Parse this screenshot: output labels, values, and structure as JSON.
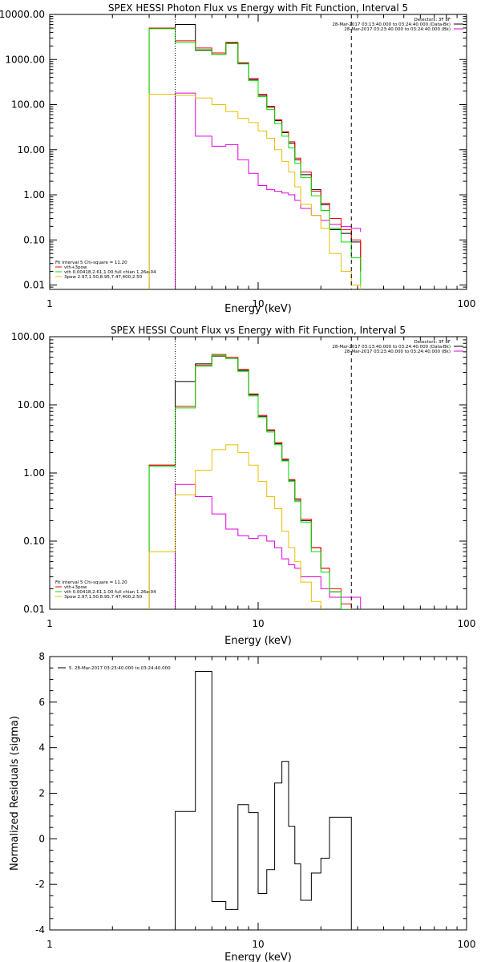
{
  "chart_data": [
    {
      "type": "line",
      "step": true,
      "title": "SPEX HESSI Photon Flux vs Energy with Fit Function, Interval 5",
      "xlabel": "Energy (keV)",
      "ylabel": "",
      "xscale": "log",
      "yscale": "log",
      "xlim": [
        1,
        100
      ],
      "ylim": [
        0.008,
        10000
      ],
      "xticks": [
        {
          "v": 1,
          "label": "1"
        },
        {
          "v": 10,
          "label": "10"
        },
        {
          "v": 100,
          "label": "100"
        }
      ],
      "yticks": [
        {
          "v": 10000,
          "label": "10000.00"
        },
        {
          "v": 1000,
          "label": "1000.00"
        },
        {
          "v": 100,
          "label": "100.00"
        },
        {
          "v": 10,
          "label": "10.00"
        },
        {
          "v": 1,
          "label": "1.00"
        },
        {
          "v": 0.1,
          "label": "0.10"
        },
        {
          "v": 0.01,
          "label": "0.01"
        }
      ],
      "vlines": [
        {
          "x": 4.0,
          "style": "dotted"
        },
        {
          "x": 28.0,
          "style": "dashed"
        }
      ],
      "header": [
        "Detectors: 3F 8F",
        "28-Mar-2017 03:13:40.000 to 03:24:40.000 (Data-Bk)",
        "28-Mar-2017 03:23:40.000 to 03:24:40.000 (Bk)"
      ],
      "header_colors": [
        "",
        "#000000",
        "#e000e0"
      ],
      "legend_title": "Fit Interval 5   Chi-square = 11.20",
      "legend": [
        {
          "label": "vth+3pow",
          "color": "#ff0000"
        },
        {
          "label": "vth 0.00418,2.61,1.00  full chian 1.26e-04",
          "color": "#00e000"
        },
        {
          "label": "3pow 2.97,1.50,8.95,7.47,400,2.50",
          "color": "#e8c000"
        }
      ],
      "edges": [
        3.0,
        4.0,
        5.0,
        6.0,
        7.0,
        8.0,
        9.0,
        10.0,
        11.0,
        12.0,
        13.0,
        14.0,
        15.0,
        16.0,
        18.0,
        20.0,
        22.0,
        25.0,
        28.0,
        31.0
      ],
      "series": [
        {
          "name": "Data-Bk",
          "color": "#000000",
          "values": [
            5000,
            6000,
            1600,
            1300,
            2300,
            820,
            360,
            160,
            88,
            44,
            24,
            14,
            6,
            2.8,
            1.3,
            0.6,
            0.17,
            0.14,
            0.09,
            0.02
          ]
        },
        {
          "name": "Bk",
          "color": "#e000e0",
          "values": [
            null,
            180,
            20,
            12,
            13,
            6,
            3,
            1.6,
            1.3,
            1.2,
            1.1,
            1.0,
            0.75,
            0.5,
            0.35,
            0.27,
            0.22,
            0.2,
            0.18,
            0.15
          ]
        },
        {
          "name": "vth+3pow",
          "color": "#ff0000",
          "values": [
            5000,
            2600,
            1800,
            1400,
            2400,
            850,
            380,
            170,
            92,
            46,
            25,
            15,
            6.5,
            3.2,
            1.2,
            0.65,
            0.3,
            0.17,
            0.1,
            0.02
          ]
        },
        {
          "name": "vth",
          "color": "#00e000",
          "values": [
            4800,
            2400,
            1650,
            1300,
            2250,
            800,
            340,
            150,
            78,
            38,
            20,
            11,
            5.0,
            2.4,
            0.95,
            0.45,
            0.18,
            0.09,
            0.04,
            0.01
          ]
        },
        {
          "name": "3pow",
          "color": "#e8c000",
          "values": [
            170,
            160,
            140,
            100,
            70,
            50,
            40,
            26,
            18,
            10,
            5.5,
            3.2,
            1.5,
            0.62,
            0.35,
            0.18,
            0.05,
            0.02,
            0.01,
            null
          ]
        }
      ]
    },
    {
      "type": "line",
      "step": true,
      "title": "SPEX HESSI Count Flux vs Energy with Fit Function, Interval 5",
      "xlabel": "Energy (keV)",
      "ylabel": "",
      "xscale": "log",
      "yscale": "log",
      "xlim": [
        1,
        100
      ],
      "ylim": [
        0.01,
        100
      ],
      "xticks": [
        {
          "v": 1,
          "label": "1"
        },
        {
          "v": 10,
          "label": "10"
        },
        {
          "v": 100,
          "label": "100"
        }
      ],
      "yticks": [
        {
          "v": 100,
          "label": "100.00"
        },
        {
          "v": 10,
          "label": "10.00"
        },
        {
          "v": 1,
          "label": "1.00"
        },
        {
          "v": 0.1,
          "label": "0.10"
        },
        {
          "v": 0.01,
          "label": "0.01"
        }
      ],
      "vlines": [
        {
          "x": 4.0,
          "style": "dotted"
        },
        {
          "x": 28.0,
          "style": "dashed"
        }
      ],
      "header": [
        "Detectors: 3F 8F",
        "28-Mar-2017 03:13:40.000 to 03:24:40.000 (Data-Bk)",
        "28-Mar-2017 03:23:40.000 to 03:24:40.000 (Bk)"
      ],
      "header_colors": [
        "",
        "#000000",
        "#e000e0"
      ],
      "legend_title": "Fit Interval 5   Chi-square = 11.20",
      "legend": [
        {
          "label": "vth+3pow",
          "color": "#ff0000"
        },
        {
          "label": "vth 0.00418,2.61,1.00  full chian 1.26e-04",
          "color": "#00e000"
        },
        {
          "label": "3pow 2.97,1.50,8.95,7.47,400,2.50",
          "color": "#e8c000"
        }
      ],
      "edges": [
        3.0,
        4.0,
        5.0,
        6.0,
        7.0,
        8.0,
        9.0,
        10.0,
        11.0,
        12.0,
        13.0,
        14.0,
        15.0,
        16.0,
        18.0,
        20.0,
        22.0,
        25.0,
        28.0,
        31.0
      ],
      "series": [
        {
          "name": "Data-Bk",
          "color": "#000000",
          "values": [
            1.3,
            22,
            40,
            52,
            48,
            32,
            14,
            6.8,
            4.2,
            2.7,
            1.55,
            0.78,
            0.4,
            0.2,
            0.08,
            0.04,
            0.018,
            0.01,
            null
          ]
        },
        {
          "name": "Bk",
          "color": "#e000e0",
          "values": [
            null,
            0.68,
            0.45,
            0.25,
            0.15,
            0.12,
            0.11,
            0.12,
            0.1,
            0.08,
            0.055,
            0.045,
            0.04,
            0.03,
            0.03,
            0.02,
            0.015,
            0.015,
            0.015
          ]
        },
        {
          "name": "vth+3pow",
          "color": "#ff0000",
          "values": [
            1.3,
            9.5,
            38,
            55,
            50,
            33,
            14.5,
            7.0,
            4.3,
            2.8,
            1.6,
            0.8,
            0.42,
            0.21,
            0.08,
            0.04,
            0.02,
            0.012,
            null
          ]
        },
        {
          "name": "vth",
          "color": "#00e000",
          "values": [
            1.25,
            9.0,
            37,
            53,
            48,
            31,
            13.5,
            6.5,
            4.0,
            2.6,
            1.5,
            0.75,
            0.38,
            0.19,
            0.07,
            0.035,
            0.018,
            0.01,
            null
          ]
        },
        {
          "name": "3pow",
          "color": "#e8c000",
          "values": [
            0.07,
            0.48,
            1.1,
            2.2,
            2.6,
            2.0,
            1.3,
            0.75,
            0.45,
            0.3,
            0.14,
            0.08,
            0.05,
            0.025,
            0.013,
            null,
            null,
            null,
            null
          ]
        }
      ]
    },
    {
      "type": "line",
      "step": true,
      "title": "",
      "xlabel": "Energy (keV)",
      "ylabel": "Normalized Residuals (sigma)",
      "xscale": "log",
      "yscale": "linear",
      "xlim": [
        1,
        100
      ],
      "ylim": [
        -4,
        8
      ],
      "xticks": [
        {
          "v": 1,
          "label": "1"
        },
        {
          "v": 10,
          "label": "10"
        },
        {
          "v": 100,
          "label": "100"
        }
      ],
      "yticks": [
        {
          "v": -4,
          "label": "-4"
        },
        {
          "v": -2,
          "label": "-2"
        },
        {
          "v": 0,
          "label": "0"
        },
        {
          "v": 2,
          "label": "2"
        },
        {
          "v": 4,
          "label": "4"
        },
        {
          "v": 6,
          "label": "6"
        },
        {
          "v": 8,
          "label": "8"
        }
      ],
      "vlines": [],
      "header": [],
      "header_colors": [],
      "legend_title": "",
      "legend": [
        {
          "label": "5. 28-Mar-2017 03:23:40.000 to 03:24:40.000",
          "color": "#000000"
        }
      ],
      "legend_pos": "top-left",
      "edges": [
        4.0,
        5.0,
        6.0,
        7.0,
        8.0,
        9.0,
        10.0,
        11.0,
        12.0,
        13.0,
        14.0,
        15.0,
        16.0,
        18.0,
        20.0,
        22.0,
        25.0,
        28.0
      ],
      "series": [
        {
          "name": "residuals",
          "color": "#000000",
          "drop_to_floor": true,
          "values": [
            1.2,
            7.35,
            -2.75,
            -3.1,
            1.5,
            1.15,
            -2.4,
            -1.35,
            2.45,
            3.4,
            0.55,
            -1.1,
            -2.7,
            -1.5,
            -0.85,
            0.95,
            0.95
          ]
        }
      ]
    }
  ]
}
